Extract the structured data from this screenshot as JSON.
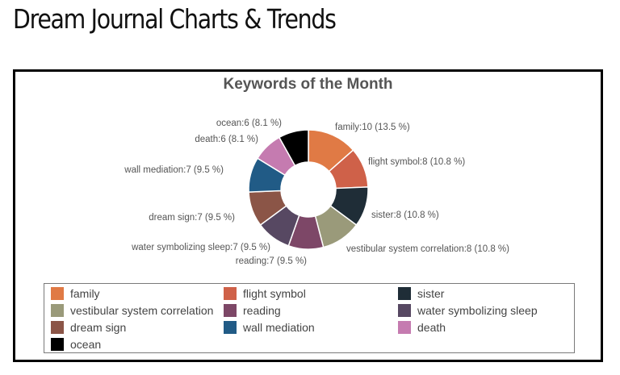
{
  "page": {
    "title": "Dream Journal Charts & Trends"
  },
  "chart_data": {
    "type": "pie",
    "donut": true,
    "title": "Keywords of the Month",
    "legend_position": "bottom",
    "slices": [
      {
        "label": "family",
        "value": 10,
        "percent_text": "13.5 %",
        "color": "#e07a45"
      },
      {
        "label": "flight symbol",
        "value": 8,
        "percent_text": "10.8 %",
        "color": "#cf6149"
      },
      {
        "label": "sister",
        "value": 8,
        "percent_text": "10.8 %",
        "color": "#1f2d37"
      },
      {
        "label": "vestibular system correlation",
        "value": 8,
        "percent_text": "10.8 %",
        "color": "#9a9a7a"
      },
      {
        "label": "reading",
        "value": 7,
        "percent_text": "9.5 %",
        "color": "#7d4767"
      },
      {
        "label": "water symbolizing sleep",
        "value": 7,
        "percent_text": "9.5 %",
        "color": "#574862"
      },
      {
        "label": "dream sign",
        "value": 7,
        "percent_text": "9.5 %",
        "color": "#8b5547"
      },
      {
        "label": "wall mediation",
        "value": 7,
        "percent_text": "9.5 %",
        "color": "#215b86"
      },
      {
        "label": "death",
        "value": 6,
        "percent_text": "8.1 %",
        "color": "#c57bb0"
      },
      {
        "label": "ocean",
        "value": 6,
        "percent_text": "8.1 %",
        "color": "#000000"
      }
    ]
  }
}
